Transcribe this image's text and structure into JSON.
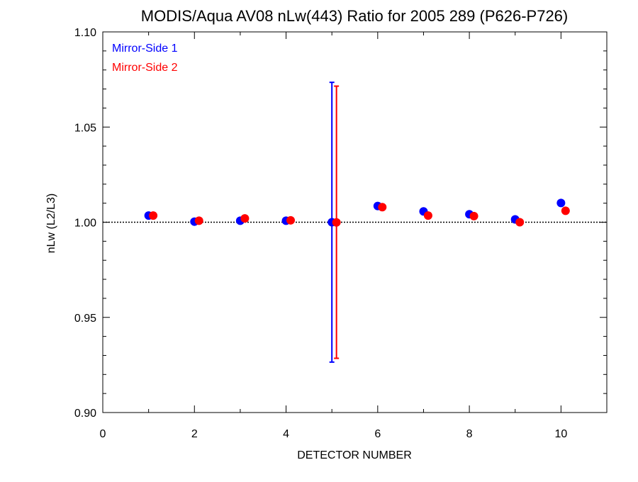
{
  "chart_data": {
    "type": "scatter",
    "title": "MODIS/Aqua AV08 nLw(443) Ratio for 2005 289 (P626-P726)",
    "xlabel": "DETECTOR NUMBER",
    "ylabel": "nLw (L2/L3)",
    "xlim": [
      0,
      11
    ],
    "ylim": [
      0.9,
      1.1
    ],
    "x_ticks": [
      "0",
      "2",
      "4",
      "6",
      "8",
      "10"
    ],
    "y_ticks": [
      "0.90",
      "0.95",
      "1.00",
      "1.05",
      "1.10"
    ],
    "reference_line": 1.0,
    "legend_position": "top-left",
    "series": [
      {
        "name": "Mirror-Side 1",
        "color": "#0000ff",
        "x": [
          1,
          2,
          3,
          4,
          5,
          6,
          7,
          8,
          9,
          10
        ],
        "y": [
          1.0035,
          1.0003,
          1.0008,
          1.0008,
          1.0,
          1.0085,
          1.0057,
          1.0042,
          1.0015,
          1.0101
        ],
        "error_bar": {
          "x": 5,
          "low": 0.9265,
          "high": 1.0735
        }
      },
      {
        "name": "Mirror-Side 2",
        "color": "#ff0000",
        "x": [
          1.1,
          2.1,
          3.1,
          4.1,
          5.1,
          6.1,
          7.1,
          8.1,
          9.1,
          10.1
        ],
        "y": [
          1.0035,
          1.0008,
          1.002,
          1.001,
          0.9999,
          1.0079,
          1.0035,
          1.0032,
          1.0,
          1.006
        ],
        "error_bar": {
          "x": 5.1,
          "low": 0.9285,
          "high": 1.0715
        }
      }
    ]
  }
}
